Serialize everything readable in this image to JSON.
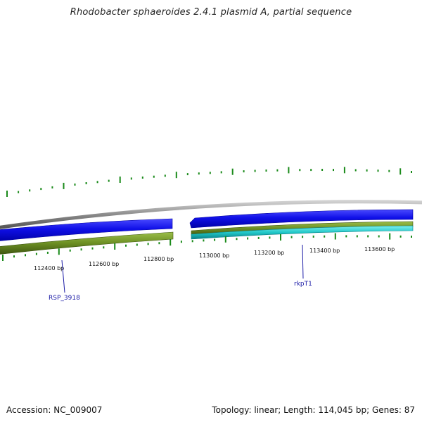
{
  "title": "Rhodobacter sphaeroides 2.4.1 plasmid A, partial sequence",
  "footer": {
    "accession": "Accession: NC_009007",
    "summary": "Topology: linear; Length: 114,045 bp; Genes: 87"
  },
  "ruler": {
    "unit": "bp",
    "labels": [
      "112400 bp",
      "112600 bp",
      "112800 bp",
      "113000 bp",
      "113200 bp",
      "113400 bp",
      "113600 bp"
    ]
  },
  "genes": [
    {
      "name": "RSP_3918",
      "strand": "+"
    },
    {
      "name": "rkpT1",
      "strand": "-"
    }
  ],
  "colors": {
    "backbone": "#8a8a8a",
    "cds_forward": "#1010e8",
    "cds_reverse": "#1010e8",
    "feature_green": "#6b8e23",
    "feature_cyan": "#20c8c8",
    "ticks": "#1a8a1a",
    "gene_label": "#1a1aa6"
  }
}
